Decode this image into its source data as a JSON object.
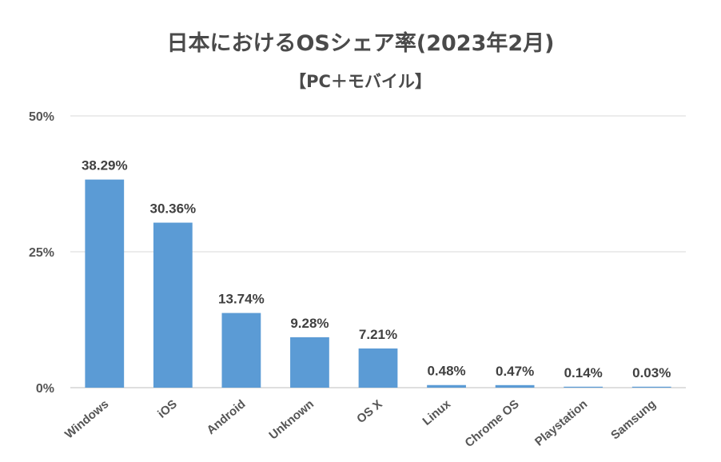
{
  "chart_data": {
    "type": "bar",
    "title": "日本におけるOSシェア率(2023年2月)",
    "subtitle": "【PC＋モバイル】",
    "categories": [
      "Windows",
      "iOS",
      "Android",
      "Unknown",
      "OS X",
      "Linux",
      "Chrome OS",
      "Playstation",
      "Samsung"
    ],
    "values": [
      38.29,
      30.36,
      13.74,
      9.28,
      7.21,
      0.48,
      0.47,
      0.14,
      0.03
    ],
    "data_labels": [
      "38.29%",
      "30.36%",
      "13.74%",
      "9.28%",
      "7.21%",
      "0.48%",
      "0.47%",
      "0.14%",
      "0.03%"
    ],
    "y_ticks": [
      0,
      25,
      50
    ],
    "y_tick_labels": [
      "0%",
      "25%",
      "50%"
    ],
    "ylim": [
      0,
      50
    ],
    "grid": true,
    "bar_color": "#5b9bd5",
    "xlabel": "",
    "ylabel": ""
  }
}
